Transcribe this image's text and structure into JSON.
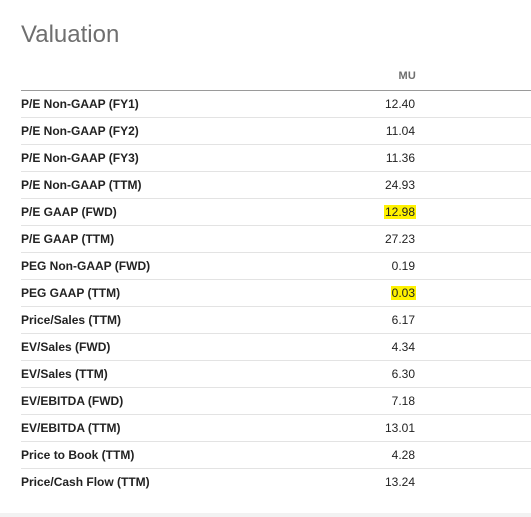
{
  "title": "Valuation",
  "column_header": "MU",
  "rows": [
    {
      "label": "P/E Non-GAAP (FY1)",
      "value": "12.40",
      "highlighted": false
    },
    {
      "label": "P/E Non-GAAP (FY2)",
      "value": "11.04",
      "highlighted": false
    },
    {
      "label": "P/E Non-GAAP (FY3)",
      "value": "11.36",
      "highlighted": false
    },
    {
      "label": "P/E Non-GAAP (TTM)",
      "value": "24.93",
      "highlighted": false
    },
    {
      "label": "P/E GAAP (FWD)",
      "value": "12.98",
      "highlighted": true
    },
    {
      "label": "P/E GAAP (TTM)",
      "value": "27.23",
      "highlighted": false
    },
    {
      "label": "PEG Non-GAAP (FWD)",
      "value": "0.19",
      "highlighted": false
    },
    {
      "label": "PEG GAAP (TTM)",
      "value": "0.03",
      "highlighted": true
    },
    {
      "label": "Price/Sales (TTM)",
      "value": "6.17",
      "highlighted": false
    },
    {
      "label": "EV/Sales (FWD)",
      "value": "4.34",
      "highlighted": false
    },
    {
      "label": "EV/Sales (TTM)",
      "value": "6.30",
      "highlighted": false
    },
    {
      "label": "EV/EBITDA (FWD)",
      "value": "7.18",
      "highlighted": false
    },
    {
      "label": "EV/EBITDA (TTM)",
      "value": "13.01",
      "highlighted": false
    },
    {
      "label": "Price to Book (TTM)",
      "value": "4.28",
      "highlighted": false
    },
    {
      "label": "Price/Cash Flow (TTM)",
      "value": "13.24",
      "highlighted": false
    }
  ],
  "colors": {
    "highlight": "#fff200",
    "title": "#6f6f6f",
    "text": "#222222"
  }
}
